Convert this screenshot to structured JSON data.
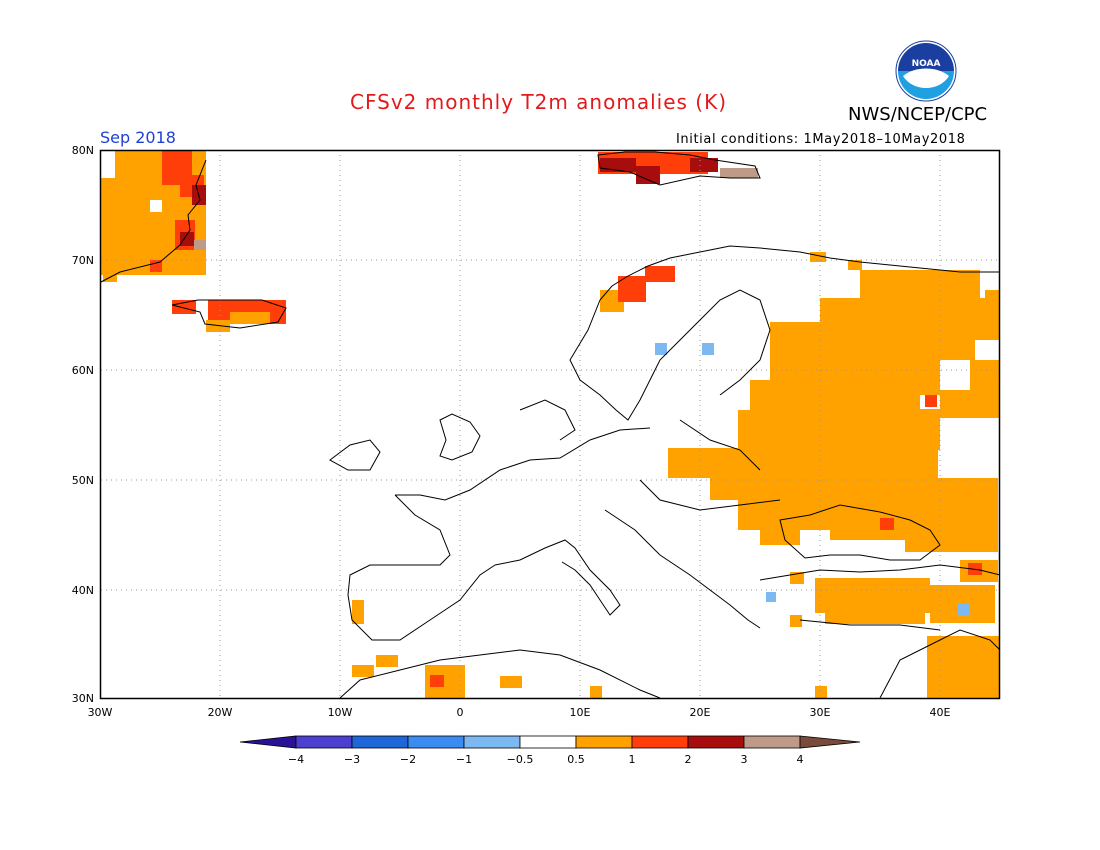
{
  "header": {
    "title": "CFSv2 monthly T2m anomalies (K)",
    "month": "Sep 2018",
    "agency": "NWS/NCEP/CPC",
    "initial_conditions": "Initial conditions: 1May2018–10May2018",
    "logo_text": "NOAA"
  },
  "map": {
    "lat_labels": [
      "80N",
      "70N",
      "60N",
      "50N",
      "40N",
      "30N"
    ],
    "lon_labels": [
      "30W",
      "20W",
      "10W",
      "0",
      "10E",
      "20E",
      "30E",
      "40E"
    ]
  },
  "colorbar": {
    "labels": [
      "−4",
      "−3",
      "−2",
      "−1",
      "−0.5",
      "0.5",
      "1",
      "2",
      "3",
      "4"
    ],
    "colors": [
      "#2a1296",
      "#4d3fd0",
      "#1f66d8",
      "#3b8cf0",
      "#7cb8f2",
      "#ffffff",
      "#ffa200",
      "#ff3e0a",
      "#a80d0d",
      "#c09a88",
      "#7a4a3a"
    ]
  },
  "colors": {
    "positive_small": "#ffa200",
    "positive_medium": "#ff3e0a",
    "positive_large": "#a80d0d",
    "positive_extreme": "#c09a88",
    "negative_small": "#7cb8f2",
    "title": "#e31a1c",
    "month": "#1f3fd6"
  }
}
